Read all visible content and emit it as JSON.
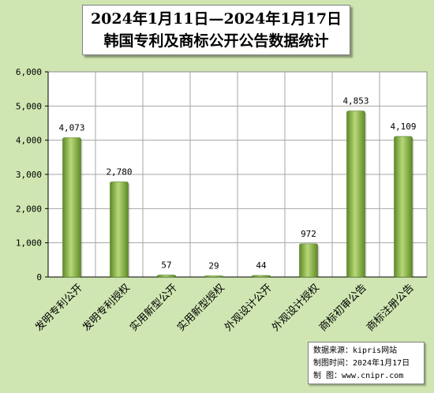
{
  "chart_data": {
    "type": "bar",
    "title": "2024年1月11日—2024年1月17日",
    "subtitle": "韩国专利及商标公开公告数据统计",
    "categories": [
      "发明专利公开",
      "发明专利授权",
      "实用新型公开",
      "实用新型授权",
      "外观设计公开",
      "外观设计授权",
      "商标初审公告",
      "商标注册公告"
    ],
    "values": [
      4073,
      2780,
      57,
      29,
      44,
      972,
      4853,
      4109
    ],
    "value_labels": [
      "4,073",
      "2,780",
      "57",
      "29",
      "44",
      "972",
      "4,853",
      "4,109"
    ],
    "ylim": [
      0,
      6000
    ],
    "yticks": [
      0,
      1000,
      2000,
      3000,
      4000,
      5000,
      6000
    ],
    "ytick_labels": [
      "0",
      "1,000",
      "2,000",
      "3,000",
      "4,000",
      "5,000",
      "6,000"
    ],
    "xlabel": "",
    "ylabel": "",
    "grid": true,
    "colors": {
      "bar_light": "#b8d878",
      "bar_dark": "#5e8a26",
      "plot_bg": "#ffffff",
      "page_bg": "#cfe6b2",
      "grid": "#a6a6a6"
    }
  },
  "source_box": {
    "line1": "数据来源：kipris网站",
    "line2": "制图时间：2024年1月17日",
    "line3": "制    图：www.cnipr.com"
  }
}
